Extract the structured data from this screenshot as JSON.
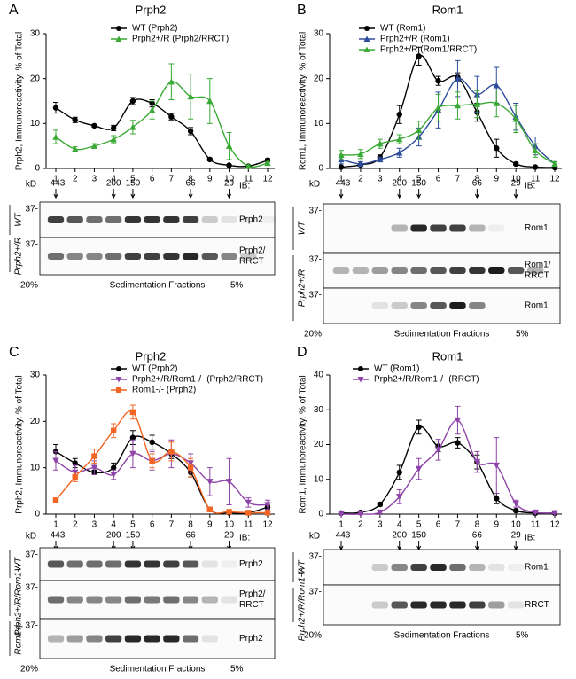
{
  "chart_data": [
    {
      "type": "line",
      "panel": "A",
      "title": "Prph2",
      "ylabel": "Prph2, Immunoreactivity, % of Total",
      "x": [
        1,
        2,
        3,
        4,
        5,
        6,
        7,
        8,
        9,
        10,
        11,
        12
      ],
      "ylim": [
        0,
        30
      ],
      "yticks": [
        0,
        10,
        20,
        30
      ],
      "series": [
        {
          "name": "WT (Prph2)",
          "color": "#000000",
          "marker": "circle",
          "values": [
            13.5,
            10.8,
            9.5,
            9,
            15,
            14.5,
            11.5,
            8.3,
            2,
            0.7,
            0.5,
            1.8
          ],
          "errors": [
            1.2,
            0.6,
            0.3,
            0.6,
            0.8,
            0.8,
            0.7,
            0.8,
            0.3,
            0.2,
            0.2,
            0.4
          ]
        },
        {
          "name": "Prph2+/R (Prph2/RRCT)",
          "color": "#3aa935",
          "marker": "triangle",
          "values": [
            7,
            4.3,
            5,
            6.5,
            9.2,
            13,
            19.3,
            16,
            15,
            5,
            0.5,
            1.2
          ],
          "errors": [
            1.5,
            0.5,
            0.5,
            0.8,
            1.5,
            2,
            4,
            5,
            5,
            3,
            0.3,
            0.3
          ]
        }
      ],
      "blot": {
        "kd": "kD",
        "ib": "IB:",
        "top": "20%",
        "bottom": "5%",
        "axis": "Sedimentation Fractions",
        "markers": [
          {
            "label": "443",
            "fraction": 1
          },
          {
            "label": "200",
            "fraction": 4
          },
          {
            "label": "150",
            "fraction": 5
          },
          {
            "label": "66",
            "fraction": 8
          },
          {
            "label": "29",
            "fraction": 10
          }
        ],
        "groups": [
          {
            "label": "WT",
            "rows": [
              {
                "ladder": "37-",
                "ib": [
                  "Prph2"
                ],
                "bands": [
                  0.8,
                  0.7,
                  0.6,
                  0.6,
                  0.85,
                  0.85,
                  0.85,
                  0.8,
                  0.2,
                  0.1,
                  0.05,
                  0.05
                ]
              }
            ]
          },
          {
            "label": "Prph2+/R",
            "rows": [
              {
                "ladder": "37-",
                "ib": [
                  "Prph2/",
                  "RRCT"
                ],
                "bands": [
                  0.6,
                  0.5,
                  0.5,
                  0.6,
                  0.8,
                  0.8,
                  0.85,
                  0.9,
                  0.7,
                  0.5,
                  0.2,
                  0
                ]
              }
            ]
          }
        ]
      }
    },
    {
      "type": "line",
      "panel": "B",
      "title": "Rom1",
      "ylabel": "Rom1, Immunoreactivity, % of Total",
      "x": [
        1,
        2,
        3,
        4,
        5,
        6,
        7,
        8,
        9,
        10,
        11,
        12
      ],
      "ylim": [
        0,
        30
      ],
      "yticks": [
        0,
        10,
        20,
        30
      ],
      "series": [
        {
          "name": "WT (Rom1)",
          "color": "#000000",
          "marker": "circle",
          "values": [
            0.3,
            0.8,
            2.5,
            12,
            25,
            19.5,
            20.3,
            12.5,
            4.5,
            1,
            0.3,
            0.2
          ],
          "errors": [
            0.2,
            0.2,
            0.5,
            2,
            2,
            1,
            1,
            2,
            2,
            0.3,
            0.1,
            0.1
          ]
        },
        {
          "name": "Prph2+/R (Rom1)",
          "color": "#2e4d9c",
          "marker": "triangle",
          "values": [
            2,
            1,
            2,
            3.5,
            7,
            13,
            20,
            16.5,
            18.5,
            11.5,
            5,
            1
          ],
          "errors": [
            1,
            0.5,
            0.5,
            1,
            2,
            4,
            4,
            4,
            4,
            3,
            2,
            0.5
          ]
        },
        {
          "name": "Prph2+/R (Rom1/RRCT)",
          "color": "#3aa935",
          "marker": "triangle",
          "values": [
            3,
            3.2,
            5.5,
            6.5,
            8.5,
            13.5,
            14,
            14.3,
            14.5,
            11,
            4,
            1
          ],
          "errors": [
            1,
            1,
            1,
            1,
            2,
            3,
            3,
            3,
            3,
            3,
            1.5,
            0.5
          ]
        }
      ],
      "blot": {
        "kd": "kD",
        "ib": "IB:",
        "top": "20%",
        "bottom": "5%",
        "axis": "Sedimentation Fractions",
        "markers": [
          {
            "label": "443",
            "fraction": 1
          },
          {
            "label": "200",
            "fraction": 4
          },
          {
            "label": "150",
            "fraction": 5
          },
          {
            "label": "66",
            "fraction": 8
          },
          {
            "label": "29",
            "fraction": 10
          }
        ],
        "groups": [
          {
            "label": "WT",
            "rows": [
              {
                "ladder": "37-",
                "ib": [
                  "Rom1"
                ],
                "bands": [
                  0,
                  0,
                  0,
                  0.3,
                  0.9,
                  0.8,
                  0.8,
                  0.3,
                  0.05,
                  0,
                  0,
                  0
                ]
              }
            ]
          },
          {
            "label": "Prph2+/R",
            "rows": [
              {
                "ladder": "37-",
                "ib": [
                  "Rom1/",
                  "RRCT"
                ],
                "bands": [
                  0.3,
                  0.3,
                  0.4,
                  0.5,
                  0.6,
                  0.7,
                  0.8,
                  0.85,
                  0.95,
                  0.7,
                  0.3,
                  0
                ]
              },
              {
                "ladder": "37-",
                "ib": [
                  "Rom1"
                ],
                "bands": [
                  0,
                  0,
                  0.1,
                  0.2,
                  0.5,
                  0.7,
                  0.95,
                  0.5,
                  0,
                  0,
                  0,
                  0
                ]
              }
            ]
          }
        ]
      }
    },
    {
      "type": "line",
      "panel": "C",
      "title": "Prph2",
      "ylabel": "Prph2, Immunoreactivity, % of Total",
      "x": [
        1,
        2,
        3,
        4,
        5,
        6,
        7,
        8,
        9,
        10,
        11,
        12
      ],
      "ylim": [
        0,
        30
      ],
      "yticks": [
        0,
        10,
        20,
        30
      ],
      "series": [
        {
          "name": "WT (Prph2)",
          "color": "#000000",
          "marker": "circle",
          "values": [
            13.5,
            11,
            9,
            10,
            16.5,
            15.5,
            13,
            9,
            1,
            0.3,
            0.3,
            1.5
          ],
          "errors": [
            1.5,
            1,
            0.5,
            1,
            1.5,
            1.5,
            1,
            1,
            0.3,
            0.2,
            0.2,
            0.4
          ]
        },
        {
          "name": "Prph2+/R/Rom1-/- (Prph2/RRCT)",
          "color": "#8e44a8",
          "marker": "triangle-down",
          "values": [
            11.5,
            9,
            10,
            8.5,
            13,
            11.5,
            13,
            11,
            7,
            7,
            2.5,
            2
          ],
          "errors": [
            2,
            1.5,
            1.5,
            1,
            3,
            2,
            3,
            2,
            3,
            5,
            1,
            1
          ]
        },
        {
          "name": "Rom1-/- (Prph2)",
          "color": "#f26522",
          "marker": "square",
          "values": [
            3,
            8,
            12.5,
            18,
            22,
            11.5,
            13.5,
            10,
            1,
            0.5,
            0.3,
            0.3
          ],
          "errors": [
            0.3,
            1,
            1.5,
            1.5,
            1.5,
            1.5,
            2,
            2,
            0.3,
            0.2,
            0.1,
            0.1
          ]
        }
      ],
      "blot": {
        "kd": "kD",
        "ib": "IB:",
        "top": "20%",
        "bottom": "5%",
        "axis": "Sedimentation Fractions",
        "markers": [
          {
            "label": "443",
            "fraction": 1
          },
          {
            "label": "200",
            "fraction": 4
          },
          {
            "label": "150",
            "fraction": 5
          },
          {
            "label": "66",
            "fraction": 8
          },
          {
            "label": "29",
            "fraction": 10
          }
        ],
        "groups": [
          {
            "label": "WT",
            "rows": [
              {
                "ladder": "37-",
                "ib": [
                  "Prph2"
                ],
                "bands": [
                  0.7,
                  0.6,
                  0.6,
                  0.6,
                  0.85,
                  0.85,
                  0.8,
                  0.7,
                  0.1,
                  0.05,
                  0,
                  0
                ]
              }
            ]
          },
          {
            "label": "Prph2+/R/Rom1-/-",
            "rows": [
              {
                "ladder": "37-",
                "ib": [
                  "Prph2/",
                  "RRCT"
                ],
                "bands": [
                  0.6,
                  0.5,
                  0.5,
                  0.5,
                  0.6,
                  0.55,
                  0.6,
                  0.5,
                  0.3,
                  0.1,
                  0,
                  0
                ]
              }
            ]
          },
          {
            "label": "Rom1-/-",
            "rows": [
              {
                "ladder": "37-",
                "ib": [
                  "Prph2"
                ],
                "bands": [
                  0.3,
                  0.4,
                  0.5,
                  0.8,
                  0.9,
                  0.9,
                  0.9,
                  0.6,
                  0.1,
                  0,
                  0,
                  0
                ]
              }
            ]
          }
        ]
      }
    },
    {
      "type": "line",
      "panel": "D",
      "title": "Rom1",
      "ylabel": "Rom1, Immunoreactivity, % of Total",
      "x": [
        1,
        2,
        3,
        4,
        5,
        6,
        7,
        8,
        9,
        10,
        11,
        12
      ],
      "ylim": [
        0,
        40
      ],
      "yticks": [
        0,
        10,
        20,
        30,
        40
      ],
      "series": [
        {
          "name": "WT (Rom1)",
          "color": "#000000",
          "marker": "circle",
          "values": [
            0.3,
            0.5,
            2.8,
            12,
            25,
            19.5,
            20.5,
            15,
            4.5,
            1,
            0.3,
            0.3
          ],
          "errors": [
            0.2,
            0.2,
            0.5,
            2,
            2,
            1.5,
            1.5,
            2,
            1.5,
            0.3,
            0.1,
            0.1
          ]
        },
        {
          "name": "Prph2+/R/Rom1-/- (RRCT)",
          "color": "#8e44a8",
          "marker": "triangle-down",
          "values": [
            0,
            0,
            0.5,
            5,
            13,
            18.5,
            27,
            15,
            14,
            3,
            0.5,
            0.3
          ],
          "errors": [
            0.1,
            0.1,
            0.3,
            2,
            3,
            3,
            4,
            3,
            8,
            1,
            0.2,
            0.1
          ]
        }
      ],
      "blot": {
        "kd": "kD",
        "ib": "IB:",
        "top": "20%",
        "bottom": "5%",
        "axis": "Sedimentation Fractions",
        "markers": [
          {
            "label": "443",
            "fraction": 1
          },
          {
            "label": "200",
            "fraction": 4
          },
          {
            "label": "150",
            "fraction": 5
          },
          {
            "label": "66",
            "fraction": 8
          },
          {
            "label": "29",
            "fraction": 10
          }
        ],
        "groups": [
          {
            "label": "WT",
            "rows": [
              {
                "ladder": "37-",
                "ib": [
                  "Rom1"
                ],
                "bands": [
                  0,
                  0,
                  0.2,
                  0.5,
                  0.8,
                  0.9,
                  0.6,
                  0.3,
                  0.1,
                  0.05,
                  0,
                  0
                ]
              }
            ]
          },
          {
            "label": "Prph2+/R/Rom1-/-",
            "rows": [
              {
                "ladder": "37-",
                "ib": [
                  "RRCT"
                ],
                "bands": [
                  0,
                  0,
                  0.2,
                  0.7,
                  0.9,
                  0.9,
                  0.9,
                  0.8,
                  0.4,
                  0.1,
                  0,
                  0
                ]
              }
            ]
          }
        ]
      }
    }
  ]
}
